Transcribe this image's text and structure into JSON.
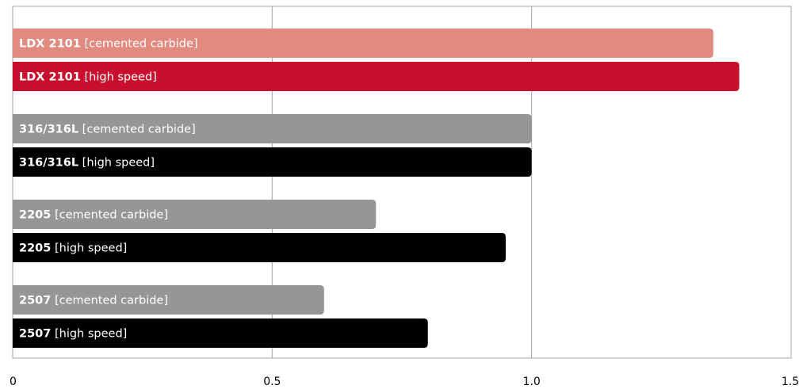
{
  "chart_data": {
    "type": "bar",
    "orientation": "horizontal",
    "title": "",
    "xlabel": "",
    "ylabel": "",
    "xlim": [
      0,
      1.5
    ],
    "x_ticks": [
      "0",
      "0.5",
      "1.0",
      "1.5"
    ],
    "x_tick_values": [
      0,
      0.5,
      1.0,
      1.5
    ],
    "grid": "vertical",
    "legend": "none",
    "bars": [
      {
        "grade": "LDX 2101",
        "tool": "[cemented carbide]",
        "value": 1.35,
        "color": "#e08a80"
      },
      {
        "grade": "LDX 2101",
        "tool": "[high speed]",
        "value": 1.4,
        "color": "#c8102e"
      },
      {
        "grade": "316/316L",
        "tool": "[cemented carbide]",
        "value": 1.0,
        "color": "#969699"
      },
      {
        "grade": "316/316L",
        "tool": "[high speed]",
        "value": 1.0,
        "color": "#000000"
      },
      {
        "grade": "2205",
        "tool": "[cemented carbide]",
        "value": 0.7,
        "color": "#969699"
      },
      {
        "grade": "2205",
        "tool": "[high speed]",
        "value": 0.95,
        "color": "#000000"
      },
      {
        "grade": "2507",
        "tool": "[cemented carbide]",
        "value": 0.6,
        "color": "#969699"
      },
      {
        "grade": "2507",
        "tool": "[high speed]",
        "value": 0.8,
        "color": "#000000"
      }
    ]
  }
}
